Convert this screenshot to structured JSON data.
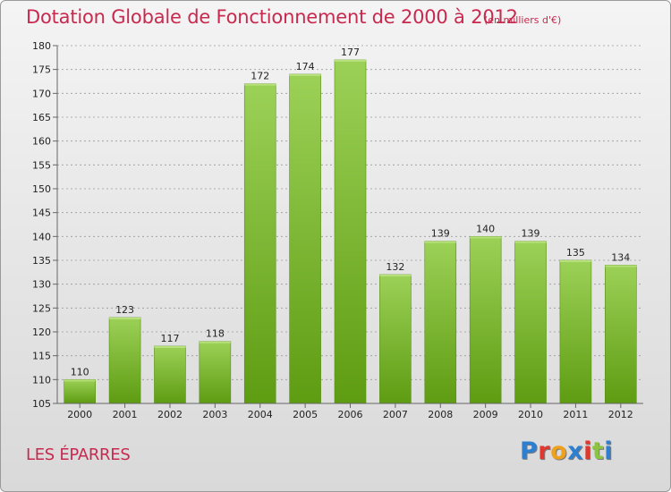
{
  "header": {
    "title": "Dotation Globale de Fonctionnement de 2000 à 2012",
    "subtitle": "(en milliers d'€)"
  },
  "footer": {
    "commune": "LES ÉPARRES",
    "logo_letters": [
      "P",
      "r",
      "o",
      "x",
      "i",
      "t",
      "i"
    ],
    "logo_colors": [
      "#2e7fd0",
      "#e0382e",
      "#f0a11c",
      "#2e7fd0",
      "#e0382e",
      "#8bc43f",
      "#2e7fd0"
    ]
  },
  "colors": {
    "title": "#c8294f",
    "bar_top": "#9cd157",
    "bar_bottom": "#5e9c12",
    "grid": "#9a9a9a"
  },
  "chart_data": {
    "type": "bar",
    "title": "Dotation Globale de Fonctionnement de 2000 à 2012",
    "subtitle": "(en milliers d'€)",
    "xlabel": "",
    "ylabel": "",
    "categories": [
      "2000",
      "2001",
      "2002",
      "2003",
      "2004",
      "2005",
      "2006",
      "2007",
      "2008",
      "2009",
      "2010",
      "2011",
      "2012"
    ],
    "values": [
      110,
      123,
      117,
      118,
      172,
      174,
      177,
      132,
      139,
      140,
      139,
      135,
      134
    ],
    "ylim": [
      105,
      180
    ],
    "yticks": [
      105,
      110,
      115,
      120,
      125,
      130,
      135,
      140,
      145,
      150,
      155,
      160,
      165,
      170,
      175,
      180
    ],
    "grid": true,
    "legend": "none"
  }
}
